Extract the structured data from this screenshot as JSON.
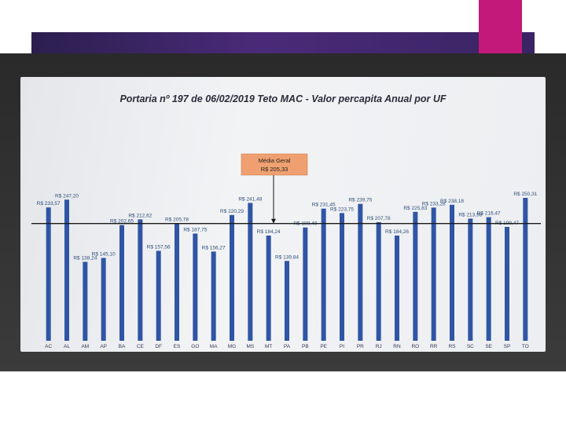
{
  "colors": {
    "bar": "#2f55a4",
    "average_line": "#1a1a1a",
    "callout": "#f0a070",
    "header_band": "#3a2463",
    "accent": "#c2197a"
  },
  "chart_data": {
    "type": "bar",
    "title": "Portaria nº 197 de 06/02/2019 Teto MAC - Valor percapita Anual por UF",
    "categories": [
      "AC",
      "AL",
      "AM",
      "AP",
      "BA",
      "CE",
      "DF",
      "ES",
      "GO",
      "MA",
      "MG",
      "MS",
      "MT",
      "PA",
      "PB",
      "PE",
      "PI",
      "PR",
      "RJ",
      "RN",
      "RO",
      "RR",
      "RS",
      "SC",
      "SE",
      "SP",
      "TO"
    ],
    "values": [
      233.57,
      247.2,
      138.24,
      145.1,
      202.65,
      212.62,
      157.56,
      205.78,
      187.75,
      156.27,
      220.29,
      241.48,
      184.24,
      139.84,
      198.49,
      231.45,
      223.75,
      239.75,
      207.78,
      184.26,
      225.83,
      233.28,
      238.18,
      213.98,
      216.47,
      199.47,
      250.31
    ],
    "labels": [
      "R$ 233,57",
      "R$ 247,20",
      "R$ 138,24",
      "R$ 145,10",
      "R$ 202,65",
      "R$ 212,62",
      "R$ 157,56",
      "R$ 205,78",
      "R$ 187,75",
      "R$ 156,27",
      "R$ 220,29",
      "R$ 241,48",
      "R$ 184,24",
      "R$ 139,84",
      "R$ 198,49",
      "R$ 231,45",
      "R$ 223,75",
      "R$ 239,75",
      "R$ 207,78",
      "R$ 184,26",
      "R$ 225,83",
      "R$ 233,28",
      "R$ 238,18",
      "R$ 213,98",
      "R$ 216,47",
      "R$ 199,47",
      "R$ 250,31"
    ],
    "average": 205.33,
    "average_callout": [
      "Média Geral",
      "R$ 205,33"
    ],
    "ylim": [
      0,
      260
    ],
    "grid": false,
    "xlabel": "",
    "ylabel": ""
  }
}
